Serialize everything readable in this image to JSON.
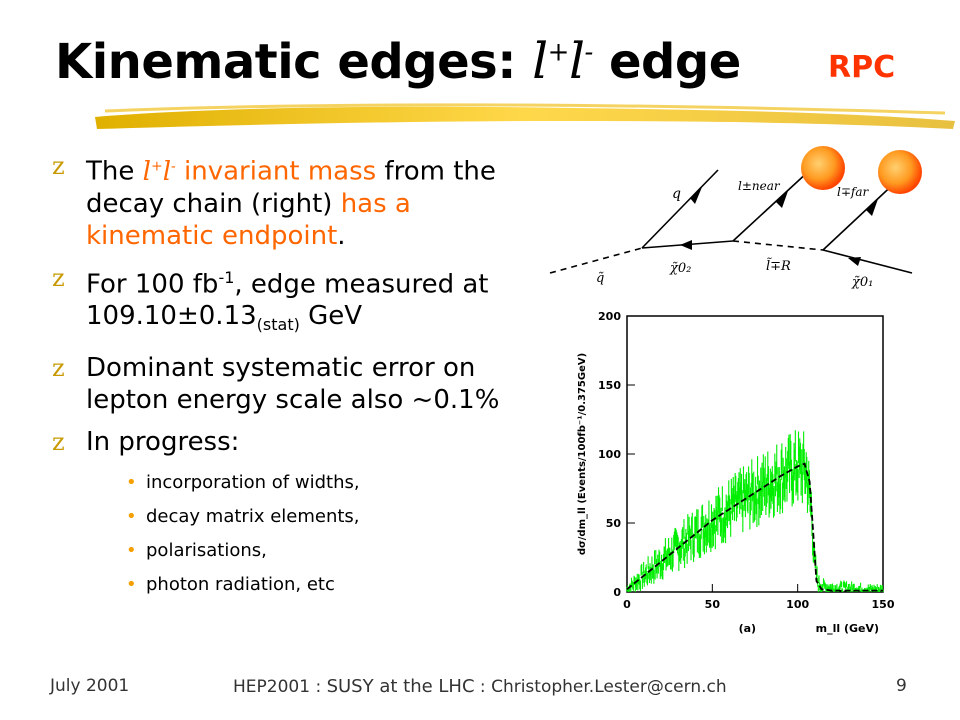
{
  "slide": {
    "title_prefix": "Kinematic edges: ",
    "title_l": "l",
    "title_plus": "+",
    "title_l2": "l",
    "title_minus": "-",
    "title_suffix": " edge",
    "tag": "RPC"
  },
  "bullets": {
    "b1_the": "The ",
    "b1_ll_l": "l",
    "b1_ll_plus": "+",
    "b1_ll_l2": "l",
    "b1_ll_minus": "-",
    "b1_inv": " invariant mass",
    "b1_mid": " from the decay chain (right) ",
    "b1_orange2": "has a kinematic endpoint",
    "b1_end": ".",
    "b2_pre": "For 100 fb",
    "b2_sup": "-1",
    "b2_mid": ", edge measured at 109.10±0.13",
    "b2_sub": "(stat)",
    "b2_end": "  GeV",
    "b3": "Dominant systematic error on lepton energy scale also ~0.1%",
    "b4": "In progress:",
    "sub_items": [
      "incorporation of widths,",
      "decay matrix elements,",
      "polarisations,",
      "photon radiation, etc"
    ],
    "marker": "z",
    "dot": "•"
  },
  "diagram": {
    "q": "q",
    "l_near": "l±near",
    "l_far": "l∓far",
    "squark": "q̃",
    "chi2": "χ̃0₂",
    "slepton": "l̃∓R",
    "chi1": "χ̃0₁"
  },
  "chart_data": {
    "type": "line",
    "title": "",
    "xlabel": "m_ll (GeV)",
    "ylabel": "dσ/dm_ll (Events/100fb⁻¹/0.375GeV)",
    "panel_label": "(a)",
    "xlim": [
      0,
      150
    ],
    "ylim": [
      0,
      200
    ],
    "x_ticks": [
      0,
      50,
      100,
      150
    ],
    "y_ticks": [
      0,
      50,
      100,
      150,
      200
    ],
    "series": [
      {
        "color": "#00ee00",
        "x": [
          0,
          10,
          20,
          30,
          40,
          50,
          60,
          70,
          80,
          90,
          100,
          105,
          108,
          110,
          112,
          115,
          120,
          130,
          140,
          150
        ],
        "y": [
          2,
          12,
          22,
          32,
          42,
          52,
          60,
          68,
          76,
          84,
          90,
          88,
          60,
          20,
          6,
          4,
          3,
          3,
          2,
          2
        ]
      },
      {
        "color": "#000000",
        "x": [
          0,
          10,
          20,
          30,
          40,
          50,
          60,
          70,
          80,
          90,
          100,
          104,
          107,
          109,
          111,
          114,
          120,
          130,
          140,
          150
        ],
        "y": [
          2,
          12,
          22,
          32,
          42,
          52,
          60,
          68,
          76,
          84,
          91,
          93,
          80,
          45,
          8,
          2,
          1,
          1,
          1,
          1
        ]
      }
    ]
  },
  "footer": {
    "date": "July 2001",
    "conf": "HEP2001 : ",
    "talk": "SUSY at the LHC",
    "sep": " : ",
    "email": "Christopher.Lester@cern.ch",
    "page": "9"
  }
}
